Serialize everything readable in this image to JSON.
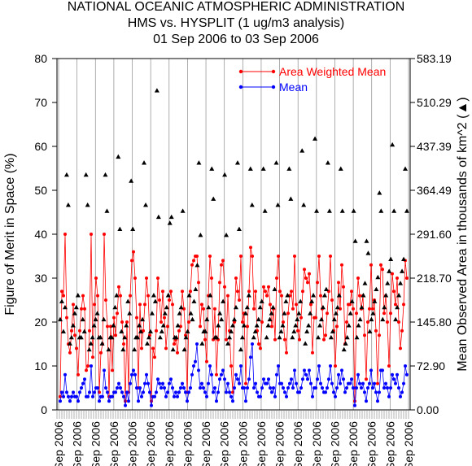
{
  "chart_data": {
    "type": "line",
    "title_lines": [
      "NATIONAL OCEANIC ATMOSPHERIC ADMINISTRATION",
      "HMS vs. HYSPLIT (1 ug/m3 analysis)",
      "01 Sep 2006 to 03 Sep 2006"
    ],
    "ylabel": "Figure of Merit in Space (%)",
    "y2label": "Mean Observed Area in thousands of km^2 (▲)",
    "ylim": [
      0,
      80
    ],
    "y_ticks": [
      "0",
      "10",
      "20",
      "30",
      "40",
      "50",
      "60",
      "70",
      "80"
    ],
    "y2lim": [
      0,
      583.19
    ],
    "y2_ticks": [
      "0.00",
      "72.90",
      "145.80",
      "218.70",
      "291.60",
      "364.49",
      "437.39",
      "510.29",
      "583.19"
    ],
    "x_tick_label": "Sep 2006",
    "x_tick_count": 20,
    "grid": false,
    "legend_position": "top-right",
    "colors": {
      "area_weighted_mean": "#ff0000",
      "mean": "#0000ff",
      "observed_area": "#000000"
    },
    "series": [
      {
        "name": "Area Weighted Mean",
        "values": [
          3,
          27,
          26,
          40,
          21,
          15,
          13,
          18,
          24,
          17,
          14,
          8,
          18,
          23,
          26,
          23,
          9,
          10,
          18,
          40,
          12,
          24,
          30,
          26,
          4,
          13,
          15,
          40,
          25,
          19,
          3,
          19,
          9,
          21,
          17,
          22,
          28,
          26,
          20,
          15,
          2,
          20,
          4,
          26,
          34,
          36,
          30,
          21,
          5,
          24,
          14,
          18,
          24,
          30,
          26,
          17,
          2,
          14,
          12,
          18,
          30,
          25,
          20,
          27,
          21,
          14,
          19,
          25,
          27,
          24,
          15,
          16,
          13,
          18,
          19,
          27,
          23,
          17,
          4,
          20,
          27,
          33,
          34,
          35,
          35,
          29,
          19,
          24,
          23,
          16,
          11,
          26,
          35,
          30,
          16,
          23,
          8,
          16,
          29,
          33,
          34,
          28,
          16,
          26,
          18,
          10,
          4,
          20,
          30,
          27,
          25,
          35,
          20,
          22,
          6,
          19,
          27,
          37,
          35,
          23,
          27,
          18,
          15,
          14,
          20,
          28,
          27,
          26,
          28,
          24,
          19,
          23,
          16,
          30,
          35,
          27,
          26,
          20,
          16,
          13,
          22,
          26,
          27,
          23,
          35,
          24,
          18,
          16,
          21,
          27,
          32,
          30,
          29,
          31,
          24,
          13,
          21,
          21,
          29,
          35,
          26,
          23,
          16,
          17,
          22,
          27,
          35,
          25,
          18,
          10,
          19,
          29,
          23,
          33,
          28,
          15,
          20,
          24,
          24,
          27,
          23,
          2,
          22,
          30,
          26,
          23,
          26,
          17,
          7,
          20,
          23,
          33,
          23,
          25,
          18,
          6,
          17,
          33,
          32,
          22,
          26,
          20,
          10,
          22,
          31,
          27,
          24,
          30,
          20,
          14,
          18,
          24,
          34,
          30
        ]
      },
      {
        "name": "Mean",
        "values": [
          2,
          4,
          3,
          8,
          4,
          3,
          2,
          3,
          4,
          3,
          3,
          2,
          4,
          5,
          6,
          7,
          3,
          3,
          4,
          10,
          3,
          4,
          5,
          5,
          2,
          3,
          3,
          9,
          5,
          4,
          2,
          3,
          3,
          4,
          4,
          5,
          6,
          5,
          4,
          3,
          1,
          4,
          2,
          6,
          8,
          9,
          8,
          5,
          2,
          5,
          3,
          4,
          6,
          8,
          6,
          4,
          1,
          3,
          3,
          4,
          7,
          6,
          5,
          6,
          5,
          3,
          4,
          6,
          7,
          5,
          3,
          4,
          3,
          4,
          5,
          6,
          5,
          4,
          2,
          4,
          5,
          8,
          10,
          11,
          15,
          9,
          5,
          6,
          5,
          4,
          3,
          6,
          10,
          8,
          4,
          5,
          2,
          4,
          7,
          8,
          9,
          7,
          4,
          6,
          4,
          3,
          2,
          5,
          8,
          7,
          6,
          10,
          5,
          5,
          2,
          5,
          7,
          12,
          15,
          5,
          6,
          4,
          3,
          3,
          5,
          7,
          6,
          6,
          7,
          5,
          4,
          5,
          3,
          8,
          10,
          6,
          6,
          5,
          4,
          3,
          5,
          6,
          7,
          5,
          9,
          6,
          4,
          4,
          5,
          7,
          9,
          8,
          7,
          9,
          6,
          3,
          5,
          5,
          7,
          10,
          6,
          5,
          4,
          4,
          5,
          7,
          10,
          6,
          4,
          3,
          5,
          8,
          6,
          9,
          7,
          4,
          5,
          6,
          6,
          7,
          5,
          1,
          5,
          8,
          6,
          5,
          6,
          4,
          2,
          5,
          6,
          9,
          5,
          6,
          4,
          2,
          4,
          9,
          9,
          5,
          6,
          5,
          3,
          5,
          8,
          7,
          6,
          8,
          5,
          3,
          4,
          6,
          10,
          8
        ]
      },
      {
        "name": "Mean Observed Area",
        "axis": "right",
        "values": [
          150,
          180,
          130,
          170,
          390,
          340,
          110,
          120,
          140,
          160,
          170,
          190,
          120,
          120,
          150,
          130,
          390,
          340,
          100,
          110,
          120,
          140,
          150,
          160,
          120,
          120,
          110,
          150,
          390,
          330,
          100,
          120,
          120,
          140,
          170,
          190,
          420,
          300,
          130,
          100,
          120,
          140,
          180,
          160,
          380,
          300,
          100,
          120,
          120,
          140,
          130,
          150,
          410,
          340,
          110,
          120,
          130,
          160,
          190,
          180,
          530,
          320,
          120,
          130,
          140,
          160,
          170,
          190,
          310,
          320,
          100,
          120,
          120,
          140,
          160,
          170,
          330,
          100,
          120,
          130,
          190,
          160,
          150,
          180,
          200,
          240,
          410,
          290,
          110,
          130,
          130,
          150,
          170,
          190,
          400,
          350,
          120,
          120,
          140,
          160,
          150,
          180,
          390,
          290,
          110,
          120,
          130,
          140,
          150,
          170,
          410,
          300,
          100,
          120,
          140,
          160,
          170,
          190,
          400,
          340,
          120,
          130,
          140,
          150,
          170,
          180,
          400,
          330,
          120,
          140,
          150,
          160,
          170,
          200,
          410,
          340,
          120,
          130,
          140,
          160,
          180,
          190,
          400,
          350,
          120,
          130,
          140,
          150,
          160,
          180,
          430,
          340,
          110,
          130,
          140,
          160,
          180,
          190,
          450,
          330,
          120,
          140,
          150,
          170,
          190,
          200,
          410,
          330,
          120,
          130,
          150,
          160,
          170,
          190,
          400,
          330,
          100,
          110,
          120,
          140,
          160,
          180,
          330,
          280,
          120,
          140,
          150,
          170,
          190,
          210,
          280,
          260,
          130,
          150,
          160,
          180,
          200,
          220,
          360,
          330,
          150,
          170,
          190,
          210,
          230,
          250,
          440,
          330,
          150,
          170,
          190,
          210,
          230,
          250,
          400,
          330
        ]
      }
    ]
  }
}
